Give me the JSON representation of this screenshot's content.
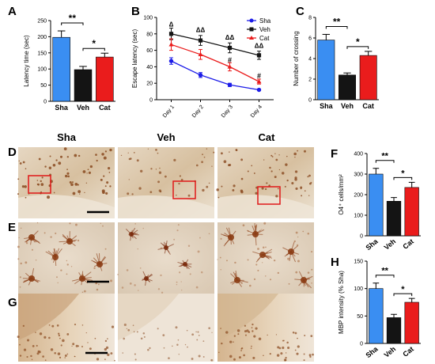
{
  "figure": {
    "columns": [
      "Sha",
      "Veh",
      "Cat"
    ],
    "rows": [
      "D",
      "E",
      "G"
    ]
  },
  "chart_data": [
    {
      "panel": "A",
      "type": "bar",
      "categories": [
        "Sha",
        "Veh",
        "Cat"
      ],
      "values": [
        198,
        98,
        137
      ],
      "errors": [
        20,
        10,
        12
      ],
      "ylabel": "Latency time (sec)",
      "ylim": [
        0,
        250
      ],
      "yticks": [
        0,
        50,
        100,
        150,
        200,
        250
      ],
      "colors": [
        "#3a8ef2",
        "#141414",
        "#ea1c1c"
      ],
      "annotations": [
        {
          "text": "**",
          "from": 0,
          "to": 1
        },
        {
          "text": "*",
          "from": 1,
          "to": 2
        }
      ]
    },
    {
      "panel": "B",
      "type": "line",
      "categories": [
        "Day 1",
        "Day 2",
        "Day 3",
        "Day 4"
      ],
      "ylabel": "Escape latency (sec)",
      "ylim": [
        0,
        100
      ],
      "yticks": [
        0,
        20,
        40,
        60,
        80,
        100
      ],
      "series": [
        {
          "name": "Sha",
          "values": [
            47,
            30,
            18,
            12
          ],
          "errors": [
            4,
            3,
            2,
            1
          ],
          "color": "#1c1ce8"
        },
        {
          "name": "Veh",
          "values": [
            80,
            72,
            63,
            54
          ],
          "errors": [
            7,
            6,
            6,
            5
          ],
          "color": "#141414"
        },
        {
          "name": "Cat",
          "values": [
            67,
            55,
            40,
            22
          ],
          "errors": [
            7,
            6,
            5,
            3
          ],
          "color": "#ea1c1c"
        }
      ],
      "annotations": [
        {
          "text": "Δ",
          "x": 0,
          "y": 92
        },
        {
          "text": "ΔΔ",
          "x": 1,
          "y": 85
        },
        {
          "text": "ΔΔ",
          "x": 2,
          "y": 76
        },
        {
          "text": "ΔΔ",
          "x": 3,
          "y": 66
        },
        {
          "text": "#",
          "x": 2,
          "y": 48
        },
        {
          "text": "#",
          "x": 3,
          "y": 29
        }
      ]
    },
    {
      "panel": "C",
      "type": "bar",
      "categories": [
        "Sha",
        "Veh",
        "Cat"
      ],
      "values": [
        5.8,
        2.4,
        4.3
      ],
      "errors": [
        0.55,
        0.2,
        0.4
      ],
      "ylabel": "Number of crossing",
      "ylim": [
        0,
        8
      ],
      "yticks": [
        0,
        2,
        4,
        6,
        8
      ],
      "colors": [
        "#3a8ef2",
        "#141414",
        "#ea1c1c"
      ],
      "annotations": [
        {
          "text": "**",
          "from": 0,
          "to": 1
        },
        {
          "text": "*",
          "from": 1,
          "to": 2
        }
      ]
    },
    {
      "panel": "F",
      "type": "bar",
      "categories": [
        "Sha",
        "Veh",
        "Cat"
      ],
      "values": [
        300,
        168,
        235
      ],
      "errors": [
        28,
        18,
        25
      ],
      "ylabel": "O4⁺ cells/mm²",
      "ylim": [
        0,
        400
      ],
      "yticks": [
        0,
        100,
        200,
        300,
        400
      ],
      "colors": [
        "#3a8ef2",
        "#141414",
        "#ea1c1c"
      ],
      "annotations": [
        {
          "text": "**",
          "from": 0,
          "to": 1
        },
        {
          "text": "*",
          "from": 1,
          "to": 2
        }
      ]
    },
    {
      "panel": "H",
      "type": "bar",
      "categories": [
        "Sha",
        "Veh",
        "Cat"
      ],
      "values": [
        100,
        47,
        75
      ],
      "errors": [
        10,
        6,
        7
      ],
      "ylabel": "MBP intensity (% Sha)",
      "ylim": [
        0,
        150
      ],
      "yticks": [
        0,
        50,
        100,
        150
      ],
      "colors": [
        "#3a8ef2",
        "#141414",
        "#ea1c1c"
      ],
      "annotations": [
        {
          "text": "**",
          "from": 0,
          "to": 1
        },
        {
          "text": "*",
          "from": 1,
          "to": 2
        }
      ]
    }
  ]
}
